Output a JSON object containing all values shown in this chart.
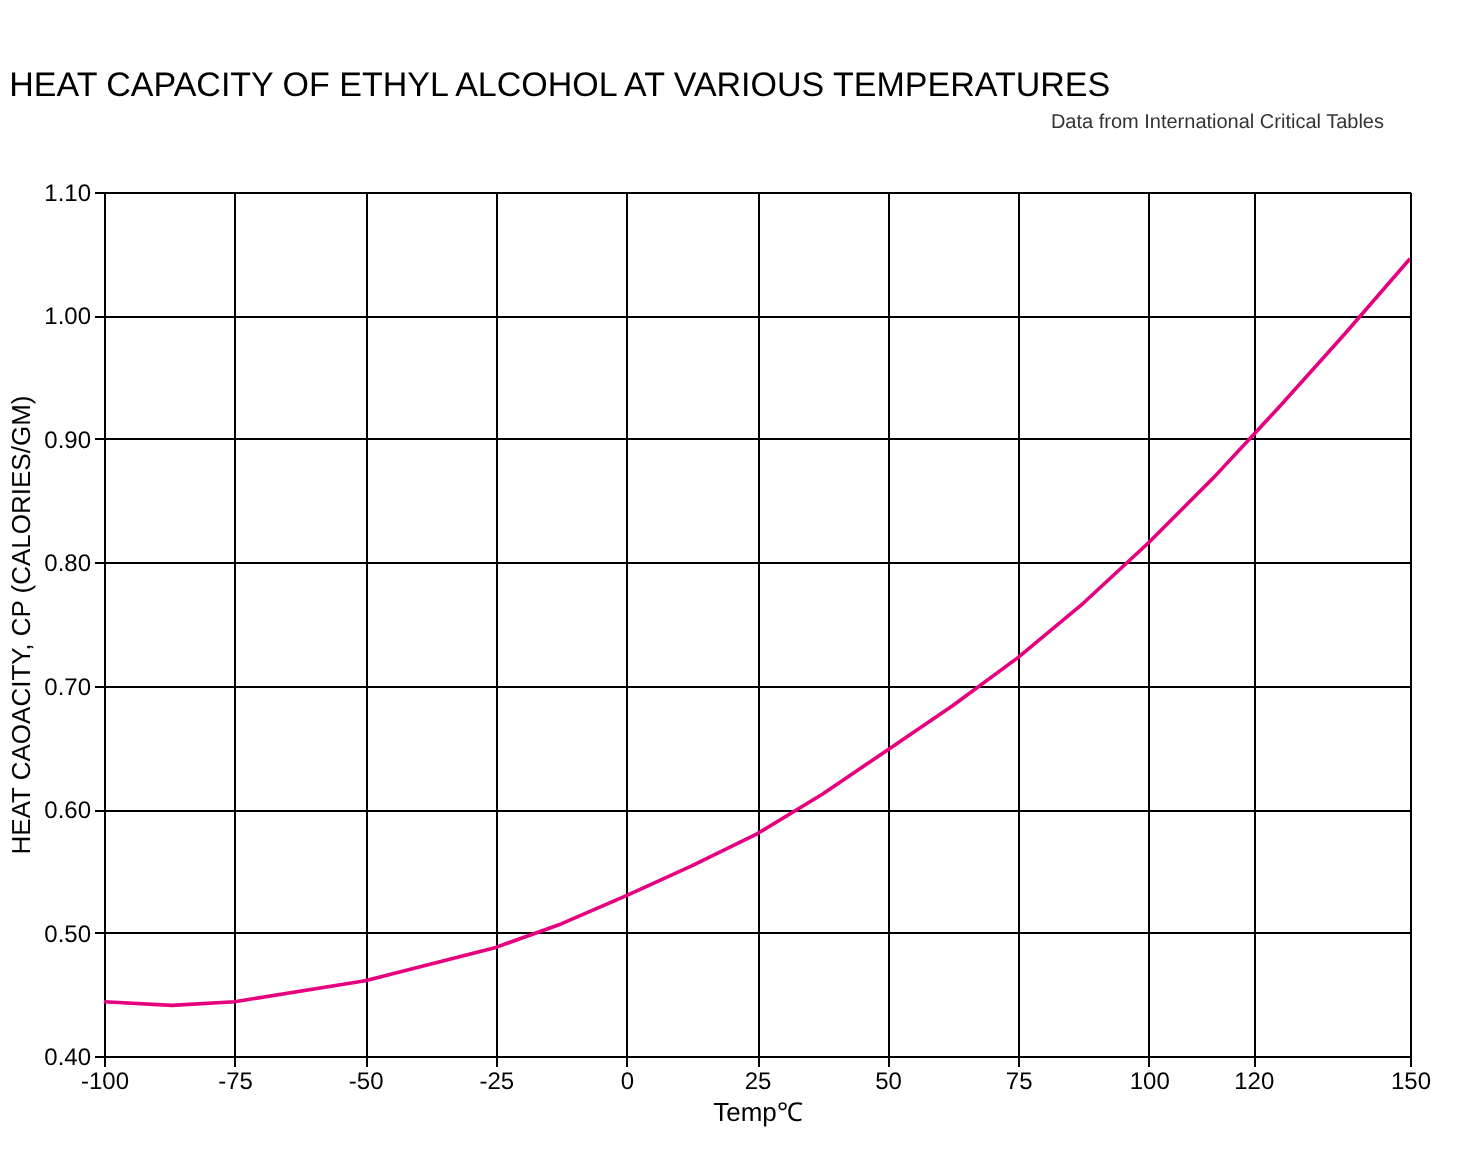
{
  "chart_data": {
    "type": "line",
    "title": "HEAT CAPACITY OF ETHYL ALCOHOL AT VARIOUS TEMPERATURES",
    "xlabel": "Temp℃",
    "ylabel": "HEAT CAOACITY, CP (CALORIES/GM)",
    "annotations": [
      "Data from International Critical Tables"
    ],
    "x": [
      -100,
      -87,
      -75,
      -50,
      -25,
      -12.5,
      0,
      12.5,
      25,
      37.5,
      50,
      62.5,
      75,
      87.5,
      100,
      112.5,
      125,
      137.5,
      150
    ],
    "series": [
      {
        "color": "#e6007e",
        "values": [
          0.444,
          0.441,
          0.444,
          0.461,
          0.488,
          0.507,
          0.53,
          0.554,
          0.58,
          0.612,
          0.648,
          0.684,
          0.723,
          0.767,
          0.816,
          0.869,
          0.926,
          0.985,
          1.046
        ]
      }
    ],
    "xlim": [
      -100,
      150
    ],
    "xticks": [
      -100,
      -75,
      -50,
      -25,
      0,
      25,
      50,
      75,
      100,
      120,
      150
    ],
    "ylim": [
      0.4,
      1.1
    ],
    "yticks": [
      {
        "value": 0.4,
        "label": "0.40"
      },
      {
        "value": 0.5,
        "label": "0.50"
      },
      {
        "value": 0.6,
        "label": "0.60"
      },
      {
        "value": 0.7,
        "label": "0.70"
      },
      {
        "value": 0.8,
        "label": "0.80"
      },
      {
        "value": 0.9,
        "label": "0.90"
      },
      {
        "value": 1.0,
        "label": "1.00"
      },
      {
        "value": 1.1,
        "label": "1.10"
      }
    ],
    "grid": true,
    "marker": "none",
    "line_style": "solid",
    "legend": false
  }
}
